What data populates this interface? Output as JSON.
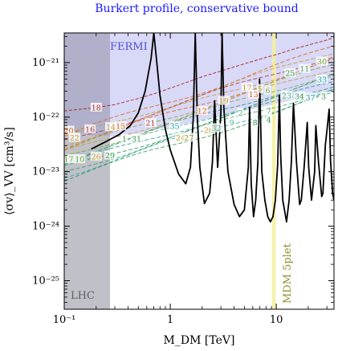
{
  "chart_data": {
    "type": "line",
    "title": "Burkert profile, conservative bound",
    "xlabel": "M_DM [TeV]",
    "ylabel": "⟨σv⟩_VV [cm³/s]",
    "xscale": "log",
    "yscale": "log",
    "xlim": [
      0.1,
      35
    ],
    "ylim": [
      3e-26,
      3.5e-21
    ],
    "x_ticks": [
      {
        "value": 0.1,
        "label": "10⁻¹"
      },
      {
        "value": 1,
        "label": "1"
      },
      {
        "value": 10,
        "label": "10"
      }
    ],
    "y_ticks": [
      {
        "value": 1e-25,
        "label": "10⁻²⁵"
      },
      {
        "value": 1e-24,
        "label": "10⁻²⁴"
      },
      {
        "value": 1e-23,
        "label": "10⁻²³"
      },
      {
        "value": 1e-22,
        "label": "10⁻²²"
      },
      {
        "value": 1e-21,
        "label": "10⁻²¹"
      }
    ],
    "grid": false,
    "regions": [
      {
        "name": "LHC",
        "x_range": [
          0.1,
          0.27
        ],
        "color": "#c0c0c8"
      },
      {
        "name": "FERMI",
        "color": "#c8c8f4"
      },
      {
        "name": "MDM 5plet",
        "x_range": [
          9.1,
          9.9
        ],
        "color": "#f4f0a0"
      }
    ],
    "fermi_bound": {
      "x": [
        0.1,
        0.15,
        0.2,
        0.27,
        0.35,
        0.5,
        0.7,
        1,
        1.5,
        2,
        3,
        5,
        7,
        10,
        15,
        20,
        30,
        35
      ],
      "y": [
        6e-23,
        4.9e-23,
        4.5e-23,
        4.4e-23,
        4.5e-23,
        5e-23,
        5.8e-23,
        6.6e-23,
        7.8e-23,
        8.8e-23,
        1.05e-22,
        1.3e-22,
        1.5e-22,
        1.75e-22,
        2.1e-22,
        2.4e-22,
        2.9e-22,
        3.1e-22
      ]
    },
    "black_curve": {
      "x": [
        0.18,
        0.25,
        0.33,
        0.42,
        0.5,
        0.58,
        0.66,
        0.7,
        0.74,
        0.8,
        0.9,
        1.0,
        1.2,
        1.4,
        1.55,
        1.65,
        1.72,
        1.8,
        1.9,
        2.1,
        2.35,
        2.5,
        2.62,
        2.8,
        3.0,
        3.08,
        3.2,
        3.5,
        4.0,
        4.5,
        5.0,
        5.45,
        5.6,
        5.8,
        6.1,
        6.4,
        6.7,
        6.95,
        7.3,
        7.8,
        8.3,
        8.8,
        9.3,
        9.8,
        10.3,
        10.7,
        11.0,
        11.5,
        12.5,
        13.2,
        13.9,
        14.5,
        15.5,
        16.6,
        17.2,
        18.3,
        19.6,
        20.2,
        21.5,
        23.0,
        23.6,
        25,
        26.8,
        27.5,
        29,
        31.5,
        32.5,
        34,
        35
      ],
      "y": [
        2.6e-23,
        3.6e-23,
        4.8e-23,
        7e-23,
        1.2e-22,
        3e-22,
        1.2e-21,
        3.5e-21,
        1.2e-21,
        2.5e-22,
        6e-23,
        2.5e-23,
        9e-24,
        6e-24,
        1.2e-23,
        1e-22,
        3.5e-21,
        1e-22,
        1.2e-23,
        2.6e-24,
        4e-24,
        1.5e-23,
        2e-22,
        1.2e-23,
        1.2e-22,
        3.5e-21,
        1.5e-22,
        1e-23,
        2.5e-24,
        1.5e-24,
        2e-24,
        1.2e-23,
        1.5e-22,
        6e-24,
        1.5e-24,
        3e-24,
        1.5e-23,
        5e-22,
        1e-23,
        3e-24,
        1.5e-24,
        1.2e-24,
        1.5e-24,
        3e-24,
        1.3e-23,
        2.5e-22,
        2e-23,
        3e-24,
        1.2e-24,
        3e-24,
        1.6e-23,
        1.8e-22,
        1.5e-23,
        2.5e-24,
        3e-24,
        1.2e-23,
        8e-23,
        1.2e-23,
        3e-24,
        1e-23,
        7e-23,
        1.5e-23,
        3.5e-24,
        4e-24,
        3e-23,
        1.4e-22,
        1.6e-23,
        4e-24,
        3e-24
      ]
    },
    "red_dashed_curve": {
      "x": [
        0.1,
        0.2,
        0.3,
        0.5,
        0.8,
        1,
        1.5,
        2,
        3,
        5,
        8,
        10,
        15,
        20,
        30,
        35
      ],
      "y": [
        1.3e-22,
        1.5e-22,
        1.7e-22,
        2.2e-22,
        2.9e-22,
        3.4e-22,
        4.5e-22,
        5.5e-22,
        7e-22,
        9.5e-22,
        1.25e-21,
        1.4e-21,
        1.8e-21,
        2.1e-21,
        2.6e-21,
        2.9e-21
      ]
    },
    "dashed_band_series": [
      {
        "color": "#e06010",
        "x": [
          0.1,
          35
        ],
        "y": [
          4.5e-23,
          1.9e-21
        ]
      },
      {
        "color": "#c0a030",
        "x": [
          0.1,
          35
        ],
        "y": [
          4e-23,
          1.6e-21
        ]
      },
      {
        "color": "#b03030",
        "x": [
          0.1,
          35
        ],
        "y": [
          3.6e-23,
          1.4e-21
        ]
      },
      {
        "color": "#d09040",
        "x": [
          0.1,
          35
        ],
        "y": [
          3.2e-23,
          1.2e-21
        ]
      },
      {
        "color": "#e06010",
        "x": [
          0.1,
          35
        ],
        "y": [
          2.8e-23,
          1.05e-21
        ]
      },
      {
        "color": "#90a030",
        "x": [
          0.1,
          35
        ],
        "y": [
          2.5e-23,
          9e-22
        ]
      },
      {
        "color": "#c0a030",
        "x": [
          0.1,
          35
        ],
        "y": [
          2.2e-23,
          8e-22
        ]
      },
      {
        "color": "#70a840",
        "x": [
          0.1,
          35
        ],
        "y": [
          1.9e-23,
          6.8e-22
        ]
      },
      {
        "color": "#2a9a4a",
        "x": [
          0.1,
          35
        ],
        "y": [
          1.7e-23,
          6e-22
        ]
      },
      {
        "color": "#40b080",
        "x": [
          0.1,
          35
        ],
        "y": [
          1.5e-23,
          5.2e-22
        ]
      },
      {
        "color": "#209898",
        "x": [
          0.1,
          35
        ],
        "y": [
          1.3e-23,
          4.5e-22
        ]
      },
      {
        "color": "#2a9a4a",
        "x": [
          0.1,
          35
        ],
        "y": [
          1.15e-23,
          4e-22
        ]
      },
      {
        "color": "#30a060",
        "x": [
          0.1,
          35
        ],
        "y": [
          1e-23,
          3.5e-22
        ]
      },
      {
        "color": "#20a0b0",
        "x": [
          0.1,
          35
        ],
        "y": [
          8.5e-24,
          3e-22
        ]
      },
      {
        "color": "#2a9a4a",
        "x": [
          0.1,
          35
        ],
        "y": [
          7.2e-24,
          2.6e-22
        ]
      }
    ],
    "curve_labels": [
      {
        "text": "18",
        "x": 0.2,
        "y": 1.5e-22,
        "color": "#b03030"
      },
      {
        "text": "20",
        "x": 0.11,
        "y": 5.7e-23,
        "color": "#e06010"
      },
      {
        "text": "22",
        "x": 0.125,
        "y": 4.2e-23,
        "color": "#c0a030"
      },
      {
        "text": "16",
        "x": 0.175,
        "y": 6e-23,
        "color": "#b03030"
      },
      {
        "text": "14",
        "x": 0.275,
        "y": 6.6e-23,
        "color": "#c0a030"
      },
      {
        "text": "15",
        "x": 0.34,
        "y": 6.8e-23,
        "color": "#e06010"
      },
      {
        "text": "21",
        "x": 0.65,
        "y": 7.8e-23,
        "color": "#b03030"
      },
      {
        "text": "1",
        "x": 0.37,
        "y": 4e-23,
        "color": "#2a9a4a"
      },
      {
        "text": "31",
        "x": 0.48,
        "y": 4e-23,
        "color": "#2a9a4a"
      },
      {
        "text": "35",
        "x": 1.1,
        "y": 6.9e-23,
        "color": "#20a0b0"
      },
      {
        "text": "17",
        "x": 0.11,
        "y": 1.7e-23,
        "color": "#70a840"
      },
      {
        "text": "10",
        "x": 0.14,
        "y": 1.7e-23,
        "color": "#70a840"
      },
      {
        "text": "26",
        "x": 0.2,
        "y": 1.9e-23,
        "color": "#c0a030"
      },
      {
        "text": "29",
        "x": 0.27,
        "y": 2e-23,
        "color": "#2a9a4a"
      },
      {
        "text": "24",
        "x": 1.25,
        "y": 4.2e-23,
        "color": "#c0a030"
      },
      {
        "text": "27",
        "x": 1.5,
        "y": 4.2e-23,
        "color": "#90a030"
      },
      {
        "text": "28",
        "x": 2.3,
        "y": 5.8e-23,
        "color": "#c0a030"
      },
      {
        "text": "32",
        "x": 2.7,
        "y": 6.3e-23,
        "color": "#40b080"
      },
      {
        "text": "12",
        "x": 2.0,
        "y": 1.3e-22,
        "color": "#e06010"
      },
      {
        "text": "19",
        "x": 3.2,
        "y": 2e-22,
        "color": "#c0a030"
      },
      {
        "text": "9",
        "x": 3.8,
        "y": 8e-23,
        "color": "#40b080"
      },
      {
        "text": "8",
        "x": 6.3,
        "y": 8e-23,
        "color": "#2a9a4a"
      },
      {
        "text": "17",
        "x": 5.3,
        "y": 3.5e-22,
        "color": "#c0a030"
      },
      {
        "text": "13",
        "x": 6.1,
        "y": 2.6e-22,
        "color": "#e06010"
      },
      {
        "text": "5",
        "x": 7.0,
        "y": 3.3e-22,
        "color": "#c0a030"
      },
      {
        "text": "6",
        "x": 8.3,
        "y": 3.1e-22,
        "color": "#70a840"
      },
      {
        "text": "25",
        "x": 13.5,
        "y": 6.4e-22,
        "color": "#2a9a4a"
      },
      {
        "text": "11",
        "x": 18.5,
        "y": 7.7e-22,
        "color": "#40b080"
      },
      {
        "text": "30",
        "x": 27,
        "y": 1.05e-21,
        "color": "#70a840"
      },
      {
        "text": "33",
        "x": 27,
        "y": 4.9e-22,
        "color": "#20a0b0"
      },
      {
        "text": "23",
        "x": 12.5,
        "y": 2.5e-22,
        "color": "#40b080"
      },
      {
        "text": "34",
        "x": 16.5,
        "y": 2.4e-22,
        "color": "#2a9a4a"
      },
      {
        "text": "37",
        "x": 21,
        "y": 2.3e-22,
        "color": "#20a0b0"
      },
      {
        "text": "3",
        "x": 28,
        "y": 2.4e-22,
        "color": "#2a9a4a"
      },
      {
        "text": "4",
        "x": 8.5,
        "y": 9e-23,
        "color": "#2a9a4a"
      },
      {
        "text": "7",
        "x": 8.5,
        "y": 1.3e-22,
        "color": "#2a9a4a"
      },
      {
        "text": "2",
        "x": 4.6,
        "y": 1.2e-22,
        "color": "#40b080"
      }
    ]
  }
}
